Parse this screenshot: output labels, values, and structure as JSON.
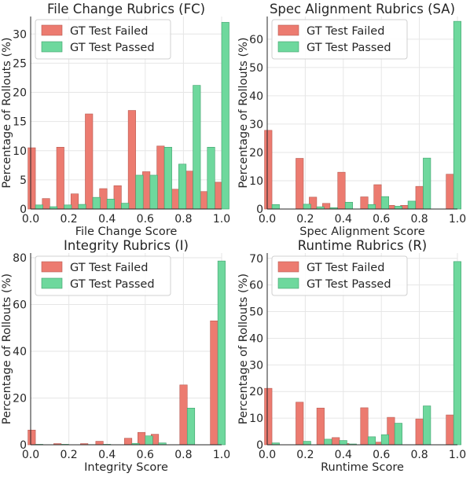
{
  "legend_labels": [
    "GT Test Failed",
    "GT Test Passed"
  ],
  "colors": {
    "failed": "#ec7b70",
    "failed_edge": "#b85b52",
    "passed": "#6ed89d",
    "passed_edge": "#3fa06c",
    "grid": "#e6e6e6",
    "axis": "#262626"
  },
  "chart_data": [
    {
      "type": "bar",
      "title": "File Change Rubrics (FC)",
      "xlabel": "File Change Score",
      "ylabel": "Percentage of Rollouts (%)",
      "xlim": [
        0,
        1
      ],
      "ylim": [
        0,
        33
      ],
      "xticks": [
        "0.0",
        "0.2",
        "0.4",
        "0.6",
        "0.8",
        "1.0"
      ],
      "yticks": [
        0,
        5,
        10,
        15,
        20,
        25,
        30
      ],
      "grid": true,
      "legend_position": "top-left",
      "bin_centers": [
        0.025,
        0.1,
        0.175,
        0.25,
        0.325,
        0.4,
        0.475,
        0.55,
        0.625,
        0.7,
        0.775,
        0.85,
        0.925,
        1.0
      ],
      "series": [
        {
          "name": "GT Test Failed",
          "values": [
            10.5,
            1.8,
            10.6,
            2.6,
            16.3,
            3.5,
            4.0,
            16.9,
            6.4,
            10.8,
            3.4,
            6.5,
            3.0,
            4.6
          ]
        },
        {
          "name": "GT Test Passed",
          "values": [
            0.7,
            0.4,
            0.7,
            0.8,
            2.0,
            1.7,
            1.0,
            5.8,
            5.8,
            10.6,
            7.7,
            21.2,
            10.6,
            32.0
          ]
        }
      ]
    },
    {
      "type": "bar",
      "title": "Spec Alignment Rubrics (SA)",
      "xlabel": "Spec Alignment Score",
      "ylabel": "Percentage of Rollouts (%)",
      "xlim": [
        0,
        1
      ],
      "ylim": [
        0,
        68
      ],
      "xticks": [
        "0.0",
        "0.2",
        "0.4",
        "0.6",
        "0.8",
        "1.0"
      ],
      "yticks": [
        0,
        10,
        20,
        30,
        40,
        50,
        60
      ],
      "grid": true,
      "legend_position": "top-left",
      "bin_centers": [
        0.025,
        0.19,
        0.26,
        0.33,
        0.41,
        0.53,
        0.6,
        0.67,
        0.74,
        0.82,
        0.98
      ],
      "series": [
        {
          "name": "GT Test Failed",
          "values": [
            27.8,
            17.9,
            4.2,
            2.0,
            13.0,
            4.3,
            8.6,
            1.3,
            1.3,
            8.0,
            12.3
          ]
        },
        {
          "name": "GT Test Passed",
          "values": [
            1.6,
            1.7,
            0.8,
            0.5,
            2.4,
            1.6,
            4.4,
            1.0,
            2.8,
            18.0,
            66.3
          ]
        }
      ]
    },
    {
      "type": "bar",
      "title": "Integrity Rubrics (I)",
      "xlabel": "Integrity Score",
      "ylabel": "Percentage of Rollouts (%)",
      "xlim": [
        0,
        1
      ],
      "ylim": [
        0,
        82
      ],
      "xticks": [
        "0.0",
        "0.2",
        "0.4",
        "0.6",
        "0.8",
        "1.0"
      ],
      "yticks": [
        0,
        20,
        40,
        60,
        80
      ],
      "grid": true,
      "legend_position": "top-left",
      "bin_centers": [
        0.025,
        0.16,
        0.3,
        0.38,
        0.53,
        0.6,
        0.67,
        0.82,
        0.98
      ],
      "series": [
        {
          "name": "GT Test Failed",
          "values": [
            6.3,
            0.5,
            0.5,
            1.5,
            2.8,
            5.3,
            4.5,
            25.6,
            53.0
          ]
        },
        {
          "name": "GT Test Passed",
          "values": [
            0.2,
            0.2,
            0.1,
            0.2,
            0.6,
            3.8,
            0.8,
            15.7,
            78.6
          ]
        }
      ]
    },
    {
      "type": "bar",
      "title": "Runtime Rubrics (R)",
      "xlabel": "Runtime Score",
      "ylabel": "Percentage of Rollouts (%)",
      "xlim": [
        0,
        1
      ],
      "ylim": [
        0,
        72
      ],
      "xticks": [
        "0.0",
        "0.2",
        "0.4",
        "0.6",
        "0.8",
        "1.0"
      ],
      "yticks": [
        0,
        10,
        20,
        30,
        40,
        50,
        60,
        70
      ],
      "grid": true,
      "legend_position": "top-left",
      "bin_centers": [
        0.025,
        0.19,
        0.3,
        0.38,
        0.43,
        0.53,
        0.6,
        0.67,
        0.82,
        0.98
      ],
      "series": [
        {
          "name": "GT Test Failed",
          "values": [
            21.2,
            16.0,
            13.8,
            2.7,
            0.5,
            13.9,
            1.0,
            10.3,
            9.7,
            11.2
          ]
        },
        {
          "name": "GT Test Passed",
          "values": [
            0.7,
            1.3,
            2.1,
            1.6,
            0.3,
            3.0,
            3.8,
            8.1,
            14.6,
            68.8
          ]
        }
      ]
    }
  ]
}
